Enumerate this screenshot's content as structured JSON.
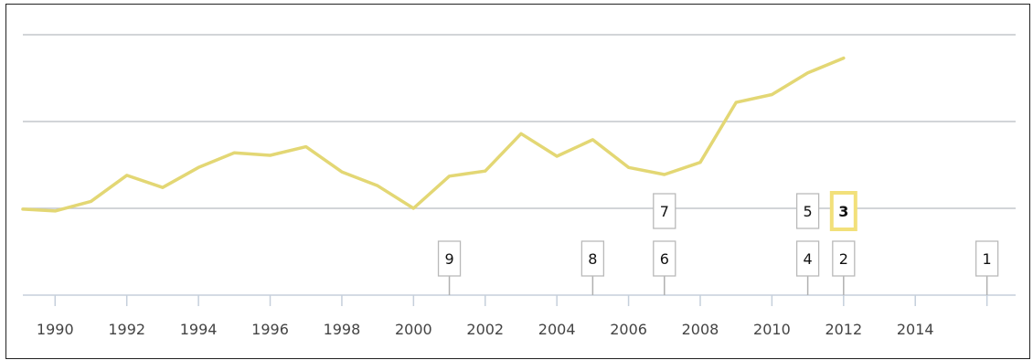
{
  "chart_data": {
    "type": "line",
    "title": "",
    "xlabel": "",
    "ylabel": "",
    "xlim": [
      1989.1,
      2016.8
    ],
    "ylim": [
      -1.0,
      3.0
    ],
    "grid": true,
    "y_gridlines": [
      1,
      2,
      3
    ],
    "x_ticks": [
      1990,
      1992,
      1994,
      1996,
      1998,
      2000,
      2002,
      2004,
      2006,
      2008,
      2010,
      2012,
      2014
    ],
    "series": [
      {
        "color": "#e3d774",
        "points": [
          [
            1989.1,
            0.99
          ],
          [
            1990,
            0.97
          ],
          [
            1991,
            1.08
          ],
          [
            1992,
            1.38
          ],
          [
            1993,
            1.24
          ],
          [
            1994,
            1.47
          ],
          [
            1995,
            1.64
          ],
          [
            1996,
            1.61
          ],
          [
            1997,
            1.71
          ],
          [
            1998,
            1.42
          ],
          [
            1999,
            1.26
          ],
          [
            2000,
            1.0
          ],
          [
            2001,
            1.37
          ],
          [
            2002,
            1.43
          ],
          [
            2003,
            1.86
          ],
          [
            2004,
            1.6
          ],
          [
            2005,
            1.79
          ],
          [
            2006,
            1.47
          ],
          [
            2007,
            1.39
          ],
          [
            2008,
            1.53
          ],
          [
            2009,
            2.22
          ],
          [
            2010,
            2.31
          ],
          [
            2011,
            2.56
          ],
          [
            2012,
            2.73
          ]
        ]
      }
    ],
    "event_markers": [
      {
        "label": "9",
        "year": 2001,
        "row": 1,
        "highlighted": false
      },
      {
        "label": "8",
        "year": 2005,
        "row": 1,
        "highlighted": false
      },
      {
        "label": "6",
        "year": 2007,
        "row": 1,
        "highlighted": false
      },
      {
        "label": "7",
        "year": 2007,
        "row": 2,
        "highlighted": false
      },
      {
        "label": "4",
        "year": 2011,
        "row": 1,
        "highlighted": false
      },
      {
        "label": "5",
        "year": 2011,
        "row": 2,
        "highlighted": false
      },
      {
        "label": "2",
        "year": 2012,
        "row": 1,
        "highlighted": false
      },
      {
        "label": "3",
        "year": 2012,
        "row": 2,
        "highlighted": true
      },
      {
        "label": "1",
        "year": 2016,
        "row": 1,
        "highlighted": false
      }
    ]
  }
}
